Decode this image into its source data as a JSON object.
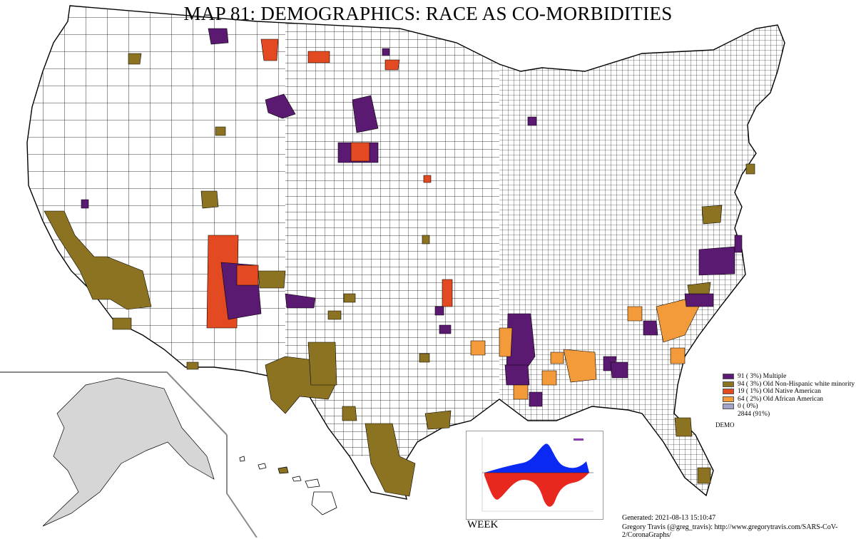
{
  "title": "MAP 81: DEMOGRAPHICS: RACE AS CO-MORBIDITIES",
  "colors": {
    "multiple": "#5b1a72",
    "old_non_hispanic_white_minority": "#8c7322",
    "old_native_american": "#e34a21",
    "old_african_american": "#f39a3a",
    "none": "#a1a3c9",
    "county_fill": "#ffffff",
    "county_border": "#000000",
    "inset_land": "#d9d9d9",
    "chart_positive": "#0a29f2",
    "chart_negative": "#e8281e"
  },
  "legend": {
    "items": [
      {
        "key": "multiple",
        "label": "91 ( 3%) Multiple"
      },
      {
        "key": "old_non_hispanic_white_minority",
        "label": "94 ( 3%) Old Non-Hispanic white minority"
      },
      {
        "key": "old_native_american",
        "label": "19 ( 1%) Old Native American"
      },
      {
        "key": "old_african_american",
        "label": "64 ( 2%) Old African American"
      },
      {
        "key": "none",
        "label": "0 ( 0%)"
      },
      {
        "key": "blank",
        "label": "2844 (91%)"
      }
    ],
    "field_label": "DEMO"
  },
  "inset_chart": {
    "label": "WEEK"
  },
  "footer": {
    "generated": "Generated: 2021-08-13 15:10:47",
    "credit": "Gregory Travis (@greg_travis): http://www.gregorytravis.com/SARS-CoV-2/CoronaGraphs/"
  }
}
